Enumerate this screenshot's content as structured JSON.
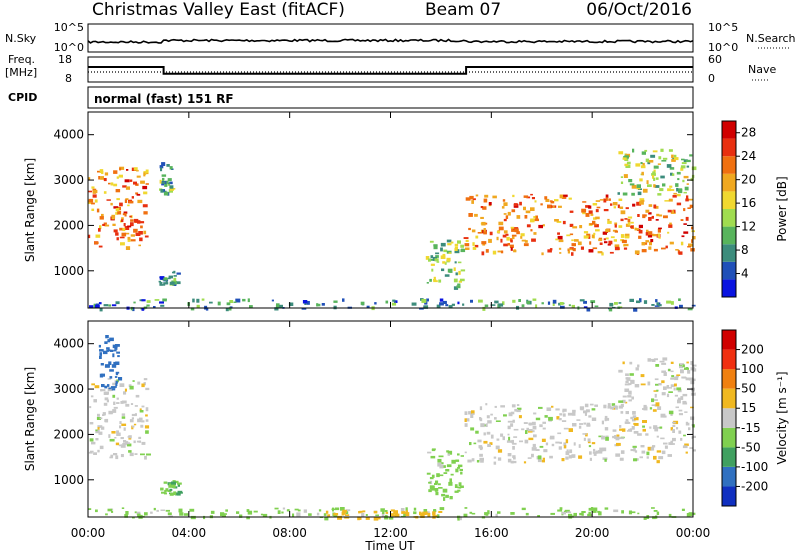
{
  "header": {
    "station": "Christmas Valley East (fitACF)",
    "beam": "Beam 07",
    "date": "06/Oct/2016"
  },
  "strip": {
    "nsky_label": "N.Sky",
    "nsky_ticks": [
      "10^5",
      "10^0"
    ],
    "nsearch_label": "N.Search",
    "nsearch_ticks": [
      "10^5",
      "10^0"
    ],
    "freq_label": "Freq.",
    "freq_unit": "[MHz]",
    "freq_ticks": [
      "18",
      "8"
    ],
    "nave_label": "Nave",
    "nave_ticks": [
      "60",
      "0"
    ],
    "cpid_label": "CPID",
    "cpid_value": "normal (fast) 151 RF"
  },
  "panels": {
    "power_ylabel": "Slant Range [km]",
    "velocity_ylabel": "Slant Range [km]",
    "xlabel": "Time UT"
  },
  "colors": {
    "frame": "#000000",
    "power_bg_noise": "#2a5fb0"
  },
  "chart_data": [
    {
      "type": "line",
      "name_ref": "strip.freq_label",
      "x": [
        "00:00",
        "03:00",
        "03:00",
        "15:00",
        "15:00",
        "24:00"
      ],
      "y": [
        14.0,
        14.0,
        11.3,
        11.3,
        14.0,
        14.0
      ],
      "ylim": [
        8,
        18
      ],
      "xlim": [
        "00:00",
        "24:00"
      ],
      "dotted_nave_level": 20
    },
    {
      "type": "heatmap",
      "title_ref": "strip.cpid_value",
      "ylabel": "Slant Range [km]",
      "xlabel": "Time UT",
      "x_ticks": [
        "00:00",
        "04:00",
        "08:00",
        "12:00",
        "16:00",
        "20:00",
        "00:00"
      ],
      "y_ticks": [
        1000,
        2000,
        3000,
        4000
      ],
      "xlim_hours": [
        0,
        24
      ],
      "ylim_km": [
        180,
        4500
      ],
      "colorbar": {
        "label": "Power [dB]",
        "ticks": [
          4,
          8,
          12,
          16,
          20,
          24,
          28
        ],
        "range": [
          0,
          30
        ],
        "colors": [
          "#0a14e0",
          "#2050b8",
          "#3c8c7c",
          "#58b45c",
          "#a0dc50",
          "#f0d830",
          "#f0a820",
          "#f07010",
          "#e83010",
          "#d00000"
        ]
      },
      "echo_regions": [
        {
          "t0": 0.0,
          "t1": 2.3,
          "r0": 1500,
          "r1": 3300,
          "power_db": 22
        },
        {
          "t0": 2.8,
          "t1": 3.3,
          "r0": 2700,
          "r1": 3400,
          "power_db": 10
        },
        {
          "t0": 2.8,
          "t1": 3.6,
          "r0": 700,
          "r1": 1000,
          "power_db": 8
        },
        {
          "t0": 13.4,
          "t1": 14.8,
          "r0": 600,
          "r1": 1700,
          "power_db": 12
        },
        {
          "t0": 14.9,
          "t1": 24.0,
          "r0": 1400,
          "r1": 2700,
          "power_db": 22
        },
        {
          "t0": 21.0,
          "t1": 24.0,
          "r0": 2700,
          "r1": 3700,
          "power_db": 14
        },
        {
          "t0": 0.0,
          "t1": 24.0,
          "r0": 180,
          "r1": 400,
          "power_db": 8
        }
      ]
    },
    {
      "type": "heatmap",
      "ylabel": "Slant Range [km]",
      "xlabel": "Time UT",
      "x_ticks": [
        "00:00",
        "04:00",
        "08:00",
        "12:00",
        "16:00",
        "20:00",
        "00:00"
      ],
      "y_ticks": [
        1000,
        2000,
        3000,
        4000
      ],
      "xlim_hours": [
        0,
        24
      ],
      "ylim_km": [
        180,
        4500
      ],
      "colorbar": {
        "label": "Velocity [m s^-1]",
        "ticks": [
          200,
          100,
          50,
          15,
          -15,
          -50,
          -100,
          -200
        ],
        "colors": [
          "#1030c0",
          "#3070c0",
          "#40a060",
          "#80d050",
          "#c8c8c8",
          "#f0b820",
          "#f08010",
          "#f03010",
          "#d00000"
        ]
      },
      "echo_regions": [
        {
          "t0": 0.0,
          "t1": 2.3,
          "r0": 1500,
          "r1": 3300,
          "velocity_ms": 0
        },
        {
          "t0": 0.4,
          "t1": 1.2,
          "r0": 3000,
          "r1": 4200,
          "velocity_ms": 150
        },
        {
          "t0": 2.8,
          "t1": 3.6,
          "r0": 700,
          "r1": 1000,
          "velocity_ms": 40
        },
        {
          "t0": 13.4,
          "t1": 14.8,
          "r0": 600,
          "r1": 1700,
          "velocity_ms": 30
        },
        {
          "t0": 14.9,
          "t1": 24.0,
          "r0": 1400,
          "r1": 2700,
          "velocity_ms": 0
        },
        {
          "t0": 21.0,
          "t1": 24.0,
          "r0": 2700,
          "r1": 3700,
          "velocity_ms": 0
        },
        {
          "t0": 0.0,
          "t1": 24.0,
          "r0": 180,
          "r1": 400,
          "velocity_ms": 30
        },
        {
          "t0": 9.0,
          "t1": 14.0,
          "r0": 180,
          "r1": 350,
          "velocity_ms": -30
        }
      ]
    }
  ]
}
